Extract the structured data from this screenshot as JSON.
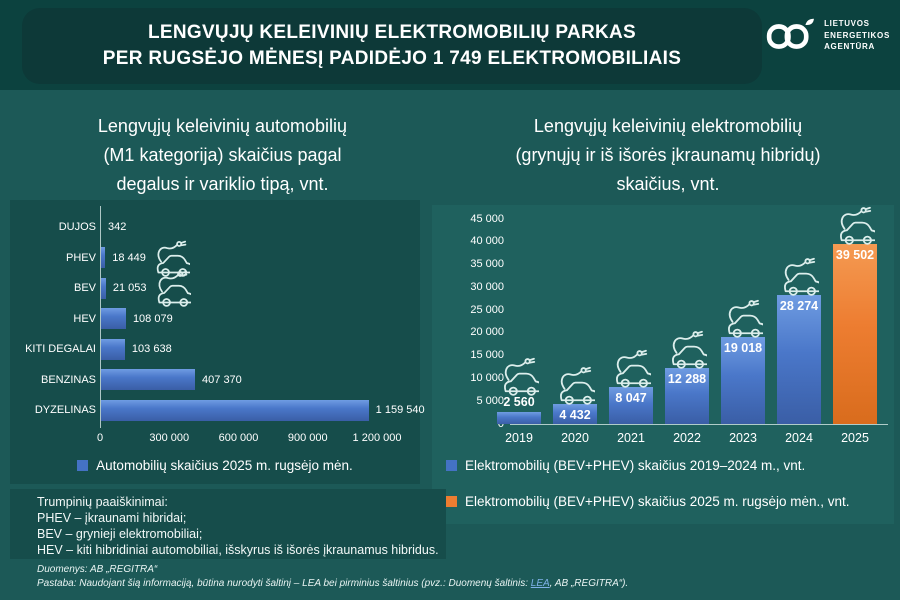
{
  "header": {
    "title_line1": "LENGVŲJŲ KELEIVINIŲ ELEKTROMOBILIŲ PARKAS",
    "title_line2": "PER RUGSĖJO MĖNESĮ PADIDĖJO 1 749 ELEKTROMOBILIAIS",
    "logo": {
      "line1": "LIETUVOS",
      "line2": "ENERGETIKOS",
      "line3": "AGENTŪRA"
    }
  },
  "left_chart": {
    "title_lines": [
      "Lengvųjų keleivinių automobilių",
      "(M1 kategorija) skaičius pagal",
      "degalus ir variklio tipą, vnt."
    ]
  },
  "right_chart": {
    "title_lines": [
      "Lengvųjų keleivinių elektromobilių",
      "(grynųjų ir iš išorės įkraunamų hibridų)",
      "skaičius, vnt."
    ]
  },
  "notes": {
    "lines": [
      "Trumpinių paaiškinimai:",
      "PHEV – įkraunami hibridai;",
      "BEV – grynieji elektromobiliai;",
      "HEV – kiti hibridiniai automobiliai, išskyrus iš išorės įkraunamus hibridus."
    ]
  },
  "footnote": {
    "line1": "Duomenys: AB „REGITRA“",
    "line2_prefix": "Pastaba: Naudojant šią informaciją, būtina nurodyti šaltinį – LEA bei pirminius šaltinius (pvz.: Duomenų šaltinis: ",
    "line2_link": "LEA",
    "line2_suffix": ", AB „REGITRA“)."
  },
  "colors": {
    "background": "#1C5957",
    "panel": "#164D4B",
    "header_band": "#0C423F",
    "title_box": "#0D3938",
    "accent_blue": "#4472C4",
    "accent_orange": "#ED7D31"
  },
  "chart_data": [
    {
      "type": "bar",
      "orientation": "horizontal",
      "title": "Lengvųjų keleivinių automobilių (M1 kategorija) skaičius pagal degalus ir variklio tipą, vnt.",
      "categories": [
        "DUJOS",
        "PHEV",
        "BEV",
        "HEV",
        "KITI DEGALAI",
        "BENZINAS",
        "DYZELINAS"
      ],
      "values": [
        342,
        18449,
        21053,
        108079,
        103638,
        407370,
        1159540
      ],
      "value_labels": [
        "342",
        "18 449",
        "21 053",
        "108 079",
        "103 638",
        "407 370",
        "1 159 540"
      ],
      "icons": [
        false,
        true,
        true,
        false,
        false,
        false,
        false
      ],
      "xlim": [
        0,
        1200000
      ],
      "x_ticks": [
        0,
        300000,
        600000,
        900000,
        1200000
      ],
      "x_tick_labels": [
        "0",
        "300 000",
        "600 000",
        "900 000",
        "1 200 000"
      ],
      "grid": false,
      "legend_position": "bottom",
      "bar_color": "#4472C4",
      "legend": [
        {
          "label": "Automobilių skaičius 2025 m. rugsėjo mėn.",
          "color": "#4472C4"
        }
      ]
    },
    {
      "type": "bar",
      "orientation": "vertical",
      "title": "Lengvųjų keleivinių elektromobilių (grynųjų ir iš išorės įkraunamų hibridų) skaičius, vnt.",
      "categories": [
        "2019",
        "2020",
        "2021",
        "2022",
        "2023",
        "2024",
        "2025"
      ],
      "values": [
        2560,
        4432,
        8047,
        12288,
        19018,
        28274,
        39502
      ],
      "value_labels": [
        "2 560",
        "4 432",
        "8 047",
        "12 288",
        "19 018",
        "28 274",
        "39 502"
      ],
      "bar_colors": [
        "#4472C4",
        "#4472C4",
        "#4472C4",
        "#4472C4",
        "#4472C4",
        "#4472C4",
        "#ED7D31"
      ],
      "ylim": [
        0,
        45000
      ],
      "y_ticks": [
        0,
        5000,
        10000,
        15000,
        20000,
        25000,
        30000,
        35000,
        40000,
        45000
      ],
      "y_tick_labels": [
        "0",
        "5 000",
        "10 000",
        "15 000",
        "20 000",
        "25 000",
        "30 000",
        "35 000",
        "40 000",
        "45 000"
      ],
      "grid": false,
      "legend_position": "bottom",
      "legend": [
        {
          "label": "Elektromobilių (BEV+PHEV) skaičius 2019–2024 m., vnt.",
          "color": "#4472C4"
        },
        {
          "label": "Elektromobilių (BEV+PHEV) skaičius 2025 m. rugsėjo mėn., vnt.",
          "color": "#ED7D31"
        }
      ]
    }
  ]
}
